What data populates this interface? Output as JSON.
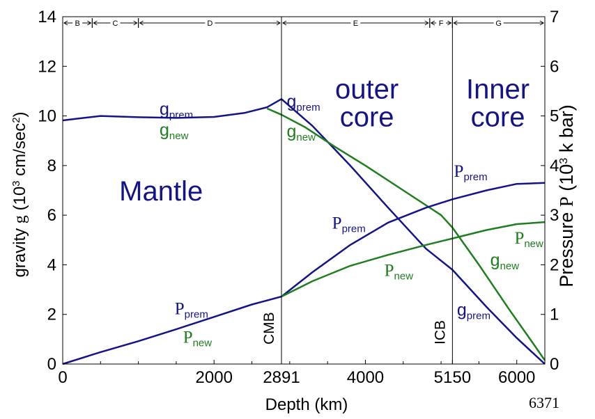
{
  "chart_data": {
    "type": "line",
    "xlabel": "Depth (km)",
    "ylabel_left": {
      "text": "gravity",
      "symbol": "g",
      "unit_pre": "(10",
      "unit_exp": "3",
      "unit_mid": " cm/sec",
      "unit_exp2": "2",
      "unit_post": ")"
    },
    "ylabel_right": {
      "text": "Pressure",
      "symbol": "P",
      "unit_pre": "(10",
      "unit_exp": "3",
      "unit_post": " k bar)"
    },
    "xlim": [
      0,
      6371
    ],
    "ylim_left": [
      0,
      14
    ],
    "ylim_right": [
      0,
      7
    ],
    "x_ticks": [
      {
        "value": 0,
        "label": "0"
      },
      {
        "value": 2000,
        "label": "2000"
      },
      {
        "value": 2891,
        "label": "2891"
      },
      {
        "value": 4000,
        "label": "4000"
      },
      {
        "value": 5150,
        "label": "5150"
      },
      {
        "value": 6000,
        "label": "6000"
      }
    ],
    "x_extra_label": {
      "value": 6371,
      "label": "6371"
    },
    "y_left_ticks": [
      "0",
      "2",
      "4",
      "6",
      "8",
      "10",
      "12",
      "14"
    ],
    "y_right_ticks": [
      "0",
      "1",
      "2",
      "3",
      "4",
      "5",
      "6",
      "7"
    ],
    "boundaries": [
      {
        "x": 2891,
        "label": "CMB"
      },
      {
        "x": 5150,
        "label": "ICB"
      }
    ],
    "zones": [
      {
        "label": "B",
        "x0": 0,
        "x1": 390
      },
      {
        "label": "C",
        "x0": 390,
        "x1": 1000
      },
      {
        "label": "D",
        "x0": 1000,
        "x1": 2891
      },
      {
        "label": "E",
        "x0": 2891,
        "x1": 4850
      },
      {
        "label": "F",
        "x0": 4850,
        "x1": 5150
      },
      {
        "label": "G",
        "x0": 5150,
        "x1": 6371
      }
    ],
    "regions": [
      {
        "lines": [
          "Mantle"
        ],
        "x": 1300,
        "y": 6.6
      },
      {
        "lines": [
          "outer",
          "core"
        ],
        "x": 4020,
        "y": 10.7
      },
      {
        "lines": [
          "Inner",
          "core"
        ],
        "x": 5750,
        "y": 10.7
      }
    ],
    "series": [
      {
        "name": "g_prem",
        "axis": "left",
        "color": "#14148a",
        "x": [
          0,
          220,
          500,
          1000,
          1500,
          2000,
          2400,
          2700,
          2891,
          3300,
          3800,
          4300,
          4800,
          5150,
          5600,
          6000,
          6371
        ],
        "y": [
          9.82,
          9.9,
          10.0,
          9.95,
          9.92,
          9.96,
          10.12,
          10.35,
          10.68,
          9.6,
          8.0,
          6.3,
          4.65,
          3.8,
          2.3,
          1.05,
          0
        ]
      },
      {
        "name": "g_new",
        "axis": "left",
        "color": "#1f7f1f",
        "x": [
          2700,
          2891,
          3200,
          3600,
          4000,
          4500,
          5000,
          5150,
          5500,
          5900,
          6200,
          6371
        ],
        "y": [
          10.3,
          10.05,
          9.55,
          8.75,
          8.0,
          7.0,
          6.0,
          5.5,
          4.0,
          2.2,
          0.9,
          0.15
        ]
      },
      {
        "name": "P_prem",
        "axis": "right",
        "color": "#14148a",
        "x": [
          0,
          500,
          1000,
          1500,
          2000,
          2500,
          2891,
          3300,
          3800,
          4300,
          4800,
          5150,
          5600,
          6000,
          6371
        ],
        "y": [
          0,
          0.24,
          0.46,
          0.7,
          0.95,
          1.2,
          1.36,
          1.85,
          2.4,
          2.85,
          3.15,
          3.32,
          3.5,
          3.63,
          3.65
        ]
      },
      {
        "name": "P_new",
        "axis": "right",
        "color": "#1f7f1f",
        "x": [
          2891,
          3300,
          3800,
          4300,
          4800,
          5150,
          5600,
          6000,
          6371
        ],
        "y": [
          1.36,
          1.67,
          1.98,
          2.2,
          2.4,
          2.53,
          2.7,
          2.82,
          2.86
        ]
      }
    ],
    "series_labels": [
      {
        "main": "g",
        "sub": "prem",
        "color": "#14148a",
        "serif": false,
        "x": 1280,
        "y": 10.05
      },
      {
        "main": "g",
        "sub": "new",
        "color": "#1f7f1f",
        "serif": false,
        "x": 1280,
        "y": 9.2
      },
      {
        "main": "g",
        "sub": "prem",
        "color": "#14148a",
        "serif": false,
        "x": 2960,
        "y": 10.35
      },
      {
        "main": "g",
        "sub": "new",
        "color": "#1f7f1f",
        "serif": false,
        "x": 2960,
        "y": 9.15
      },
      {
        "main": "P",
        "sub": "prem",
        "color": "#14148a",
        "serif": true,
        "x": 1480,
        "y": 2.0
      },
      {
        "main": "P",
        "sub": "new",
        "color": "#1f7f1f",
        "serif": true,
        "x": 1590,
        "y": 0.85
      },
      {
        "main": "P",
        "sub": "prem",
        "color": "#14148a",
        "serif": true,
        "x": 3560,
        "y": 5.45
      },
      {
        "main": "P",
        "sub": "new",
        "color": "#1f7f1f",
        "serif": true,
        "x": 4250,
        "y": 3.55
      },
      {
        "main": "P",
        "sub": "prem",
        "color": "#14148a",
        "serif": true,
        "x": 5170,
        "y": 7.55
      },
      {
        "main": "P",
        "sub": "new",
        "color": "#1f7f1f",
        "serif": true,
        "x": 5970,
        "y": 4.85
      },
      {
        "main": "g",
        "sub": "new",
        "color": "#1f7f1f",
        "serif": false,
        "x": 5650,
        "y": 3.95
      },
      {
        "main": "g",
        "sub": "prem",
        "color": "#14148a",
        "serif": false,
        "x": 5210,
        "y": 1.95
      }
    ],
    "grid": false,
    "legend": "none"
  }
}
